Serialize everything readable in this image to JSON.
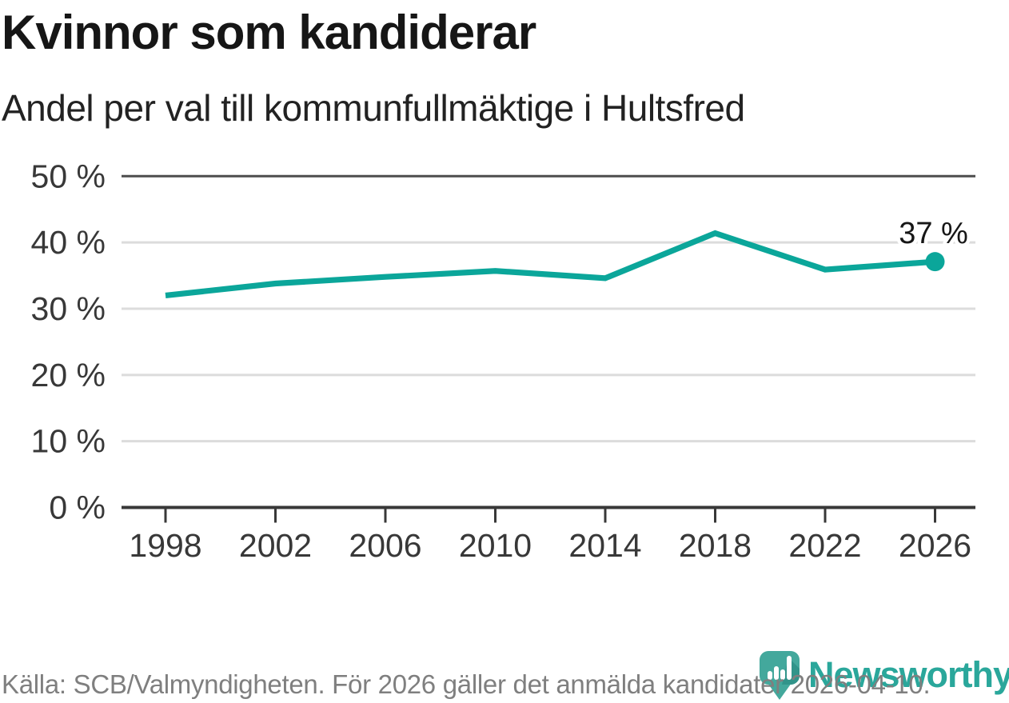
{
  "header": {
    "title": "Kvinnor som kandiderar",
    "subtitle": "Andel per val till kommunfullmäktige i Hultsfred"
  },
  "chart_data": {
    "type": "line",
    "title": "Kvinnor som kandiderar",
    "subtitle": "Andel per val till kommunfullmäktige i Hultsfred",
    "categories": [
      "1998",
      "2002",
      "2006",
      "2010",
      "2014",
      "2018",
      "2022",
      "2026"
    ],
    "values": [
      32.0,
      33.8,
      34.8,
      35.7,
      34.6,
      41.4,
      35.9,
      37.1
    ],
    "end_label": "37 %",
    "ylim": [
      0,
      50
    ],
    "yticks": [
      0,
      10,
      20,
      30,
      40,
      50
    ],
    "ytick_suffix": " %",
    "xlabel": "",
    "ylabel": "",
    "grid": "horizontal; dark rule at 50% and 0%, light rules at 10-40%",
    "legend": "none",
    "last_point_marker": true
  },
  "footer": {
    "source": "Källa: SCB/Valmyndigheten. För 2026 gäller det anmälda kandidater 2026-04-10.",
    "brand": "Newsworthy"
  },
  "colors": {
    "line": "#0ba69a",
    "grid_light": "#dcdcdc",
    "grid_dark": "#4d4d4d",
    "axis": "#383838",
    "tick_text": "#383838",
    "value_label": "#161616",
    "footer_text": "#7f7f7f",
    "brand_teal": "#2aa79b",
    "logo_main": "#43a89c",
    "logo_shadow": "#31948a"
  }
}
